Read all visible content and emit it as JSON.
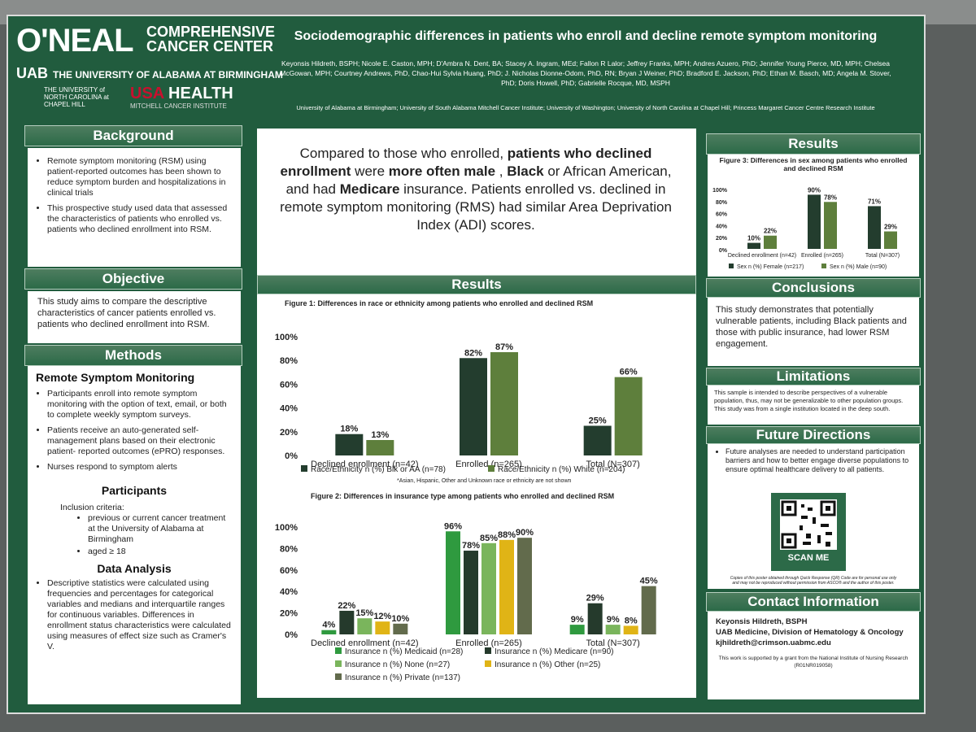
{
  "header": {
    "logo_main": "O'NEAL",
    "logo_sub1": "COMPREHENSIVE",
    "logo_sub2": "CANCER CENTER",
    "uab_mark": "UAB",
    "uab_name": "THE UNIVERSITY OF ALABAMA AT BIRMINGHAM",
    "unc_name": "THE UNIVERSITY of NORTH CAROLINA at CHAPEL HILL",
    "usa_mark": "USA",
    "usa_health": "HEALTH",
    "mci_name": "MITCHELL CANCER INSTITUTE",
    "title": "Sociodemographic differences in patients who enroll and decline remote symptom monitoring",
    "authors": "Keyonsis Hildreth, BSPH; Nicole E. Caston, MPH; D'Ambra N. Dent, BA; Stacey A. Ingram, MEd; Fallon R Lalor; Jeffrey Franks, MPH; Andres Azuero, PhD; Jennifer Young Pierce, MD, MPH; Chelsea McGowan, MPH; Courtney Andrews, PhD, Chao-Hui Sylvia Huang, PhD; J. Nicholas Dionne-Odom, PhD, RN; Bryan J Weiner, PhD; Bradford E. Jackson, PhD; Ethan M. Basch, MD; Angela M. Stover, PhD; Doris Howell, PhD; Gabrielle Rocque, MD, MSPH",
    "affiliations": "University of Alabama at Birmingham; University of South Alabama Mitchell Cancer Institute; University of Washington; University of North Carolina at Chapel Hill; Princess Margaret Cancer Centre Research Institute"
  },
  "background": {
    "heading": "Background",
    "items": [
      "Remote symptom monitoring (RSM) using patient-reported outcomes has been shown to reduce symptom burden and hospitalizations in clinical trials",
      "This prospective study used data that assessed the characteristics of patients who enrolled vs. patients who declined enrollment into RSM."
    ]
  },
  "objective": {
    "heading": "Objective",
    "text": "This study aims to compare the descriptive characteristics of cancer patients enrolled vs. patients who declined enrollment into RSM."
  },
  "methods": {
    "heading": "Methods",
    "rsm_heading": "Remote Symptom Monitoring",
    "rsm_items": [
      "Participants enroll into remote symptom monitoring with the option of text, email, or both to complete weekly symptom surveys.",
      "Patients receive an auto-generated self-management plans based on their electronic patient- reported outcomes (ePRO) responses.",
      "Nurses respond to symptom alerts"
    ],
    "participants_heading": "Participants",
    "inclusion_label": "Inclusion criteria:",
    "inclusion_items": [
      "previous or current cancer treatment at the University of Alabama at Birmingham",
      "aged ≥ 18"
    ],
    "analysis_heading": "Data Analysis",
    "analysis_items": [
      "Descriptive statistics were calculated using frequencies and percentages for categorical variables and medians and interquartile ranges for continuous variables. Differences in enrollment status characteristics were calculated using measures of effect size such as Cramer's V."
    ]
  },
  "key_finding": {
    "p1": "Compared to those who enrolled, ",
    "b1": "patients who declined enrollment",
    "p2": " were ",
    "b2": "more often male",
    "p3": " , ",
    "b3": "Black",
    "p4": " or African American, and had ",
    "b4": "Medicare",
    "p5": " insurance. Patients enrolled vs. declined in remote symptom monitoring (RMS) had similar Area Deprivation Index (ADI) scores."
  },
  "results_center_heading": "Results",
  "results_right_heading": "Results",
  "chart_data": [
    {
      "type": "bar",
      "title": "Figure 1: Differences in race or ethnicity among patients who enrolled and declined RSM",
      "categories": [
        "Declined enrollment (n=42)",
        "Enrolled (n=265)",
        "Total (N=307)"
      ],
      "series": [
        {
          "name": "Race/Ethnicity n (%) Blk or AA (n=78)",
          "values": [
            18,
            82,
            25
          ],
          "color": "#233d2e"
        },
        {
          "name": "Race/Ethnicity n (%) White (n=204)",
          "values": [
            13,
            87,
            66
          ],
          "color": "#5e7f3c"
        }
      ],
      "ylim": [
        0,
        100
      ],
      "yticks": [
        "0%",
        "20%",
        "40%",
        "60%",
        "80%",
        "100%"
      ],
      "note": "*Asian, Hispanic, Other and Unknown race or ethnicity are not shown"
    },
    {
      "type": "bar",
      "title": "Figure 2: Differences in insurance type among patients who enrolled and declined RSM",
      "categories": [
        "Declined enrollment (n=42)",
        "Enrolled (n=265)",
        "Total (N=307)"
      ],
      "series": [
        {
          "name": "Insurance n (%) Medicaid (n=28)",
          "values": [
            4,
            96,
            9
          ],
          "color": "#2f9a3f"
        },
        {
          "name": "Insurance n (%) Medicare (n=90)",
          "values": [
            22,
            78,
            29
          ],
          "color": "#253a2c"
        },
        {
          "name": "Insurance n (%) None (n=27)",
          "values": [
            15,
            85,
            9
          ],
          "color": "#7ab55c"
        },
        {
          "name": "Insurance n (%) Other (n=25)",
          "values": [
            12,
            88,
            8
          ],
          "color": "#e0b416"
        },
        {
          "name": "Insurance n (%) Private (n=137)",
          "values": [
            10,
            90,
            45
          ],
          "color": "#626b4c"
        }
      ],
      "ylim": [
        0,
        100
      ],
      "yticks": [
        "0%",
        "20%",
        "40%",
        "60%",
        "80%",
        "100%"
      ]
    },
    {
      "type": "bar",
      "title": "Figure 3: Differences in sex among patients who enrolled and declined RSM",
      "categories": [
        "Declined enrollment (n=42)",
        "Enrolled (n=265)",
        "Total (N=307)"
      ],
      "series": [
        {
          "name": "Sex n (%) Female (n=217)",
          "values": [
            10,
            90,
            71
          ],
          "color": "#233d2e"
        },
        {
          "name": "Sex n (%) Male (n=90)",
          "values": [
            22,
            78,
            29
          ],
          "color": "#5e7f3c"
        }
      ],
      "ylim": [
        0,
        100
      ],
      "yticks": [
        "0%",
        "20%",
        "40%",
        "60%",
        "80%",
        "100%"
      ]
    }
  ],
  "conclusions": {
    "heading": "Conclusions",
    "text": "This study demonstrates that potentially vulnerable patients, including Black patients and those with public insurance, had lower RSM engagement."
  },
  "limitations": {
    "heading": "Limitations",
    "text": "This sample is intended to describe perspectives of a vulnerable population, thus, may not be generalizable to other population groups. This study was from a single institution located in the deep south."
  },
  "future": {
    "heading": "Future Directions",
    "items": [
      "Future analyses are needed to understand participation barriers and how to better engage diverse populations to ensure optimal healthcare delivery to all patients."
    ],
    "scan_label": "SCAN ME",
    "qr_note": "Copies of this poster obtained through Quick Response (QR) Code are for personal use only and may not be reproduced without permission from ASCO® and the author of this poster."
  },
  "contact": {
    "heading": "Contact Information",
    "name": "Keyonsis Hildreth, BSPH",
    "org": "UAB Medicine, Division of Hematology & Oncology",
    "email": "kjhildreth@crimson.uabmc.edu",
    "grant": "This work is supported by a grant from the National Institute of Nursing Research (R01NR019058)"
  }
}
